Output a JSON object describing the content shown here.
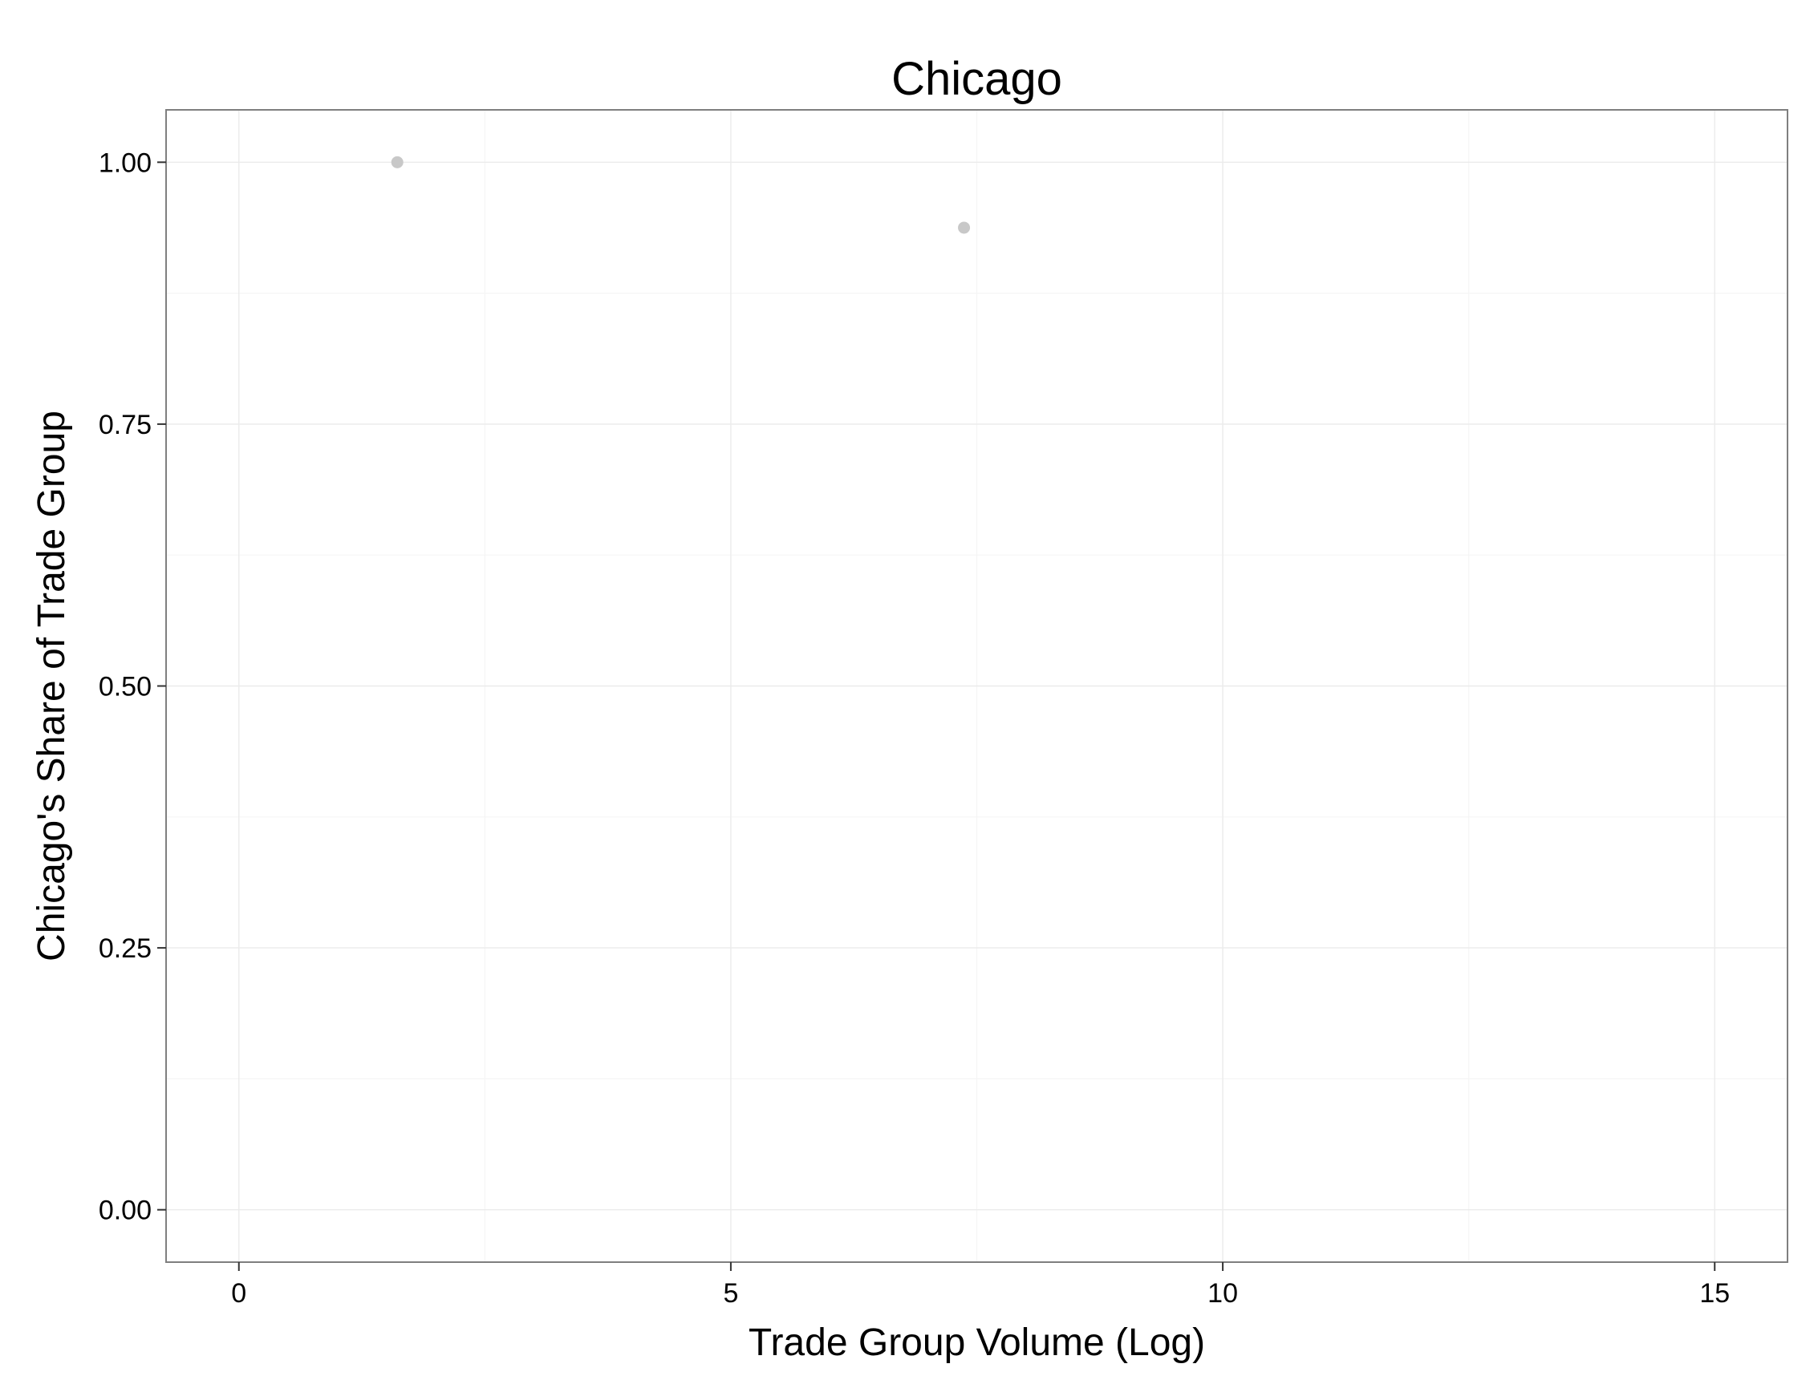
{
  "chart_data": {
    "type": "scatter",
    "title": "Chicago",
    "xlabel": "Trade Group Volume (Log)",
    "ylabel": "Chicago's Share of Trade Group",
    "xlim": [
      -0.74,
      15.74
    ],
    "ylim": [
      -0.05,
      1.05
    ],
    "x_ticks": [
      0,
      5,
      10,
      15
    ],
    "x_tick_labels": [
      "0",
      "5",
      "10",
      "15"
    ],
    "y_ticks": [
      0,
      0.25,
      0.5,
      0.75,
      1
    ],
    "y_tick_labels": [
      "0.00",
      "0.25",
      "0.50",
      "0.75",
      "1.00"
    ],
    "x_minor_ticks": [
      2.5,
      7.5,
      12.5
    ],
    "y_minor_ticks": [
      0.125,
      0.375,
      0.625,
      0.875
    ],
    "grid": true,
    "legend": "none",
    "point_color": "#c8c8c8",
    "series": [
      {
        "points": [
          {
            "x": 1.61,
            "y": 1.0
          },
          {
            "x": 7.37,
            "y": 0.9375
          }
        ]
      }
    ]
  }
}
